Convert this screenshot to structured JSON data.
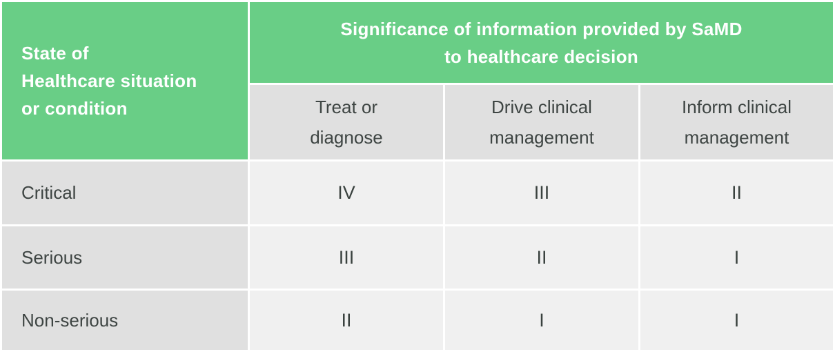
{
  "colors": {
    "header_green": "#69ce86",
    "header_gray": "#e0e0e0",
    "cell_gray": "#f0f0f0",
    "header_text_white": "#ffffff",
    "body_text_dark": "#3e4543",
    "divider_white": "#ffffff"
  },
  "table": {
    "corner_header": "State of\nHealthcare situation\nor condition",
    "main_header": "Significance of information provided by SaMD\nto healthcare decision",
    "column_headers": [
      "Treat or\ndiagnose",
      "Drive clinical\nmanagement",
      "Inform clinical\nmanagement"
    ],
    "rows": [
      {
        "label": "Critical",
        "values": [
          "IV",
          "III",
          "II"
        ]
      },
      {
        "label": "Serious",
        "values": [
          "III",
          "II",
          "I"
        ]
      },
      {
        "label": "Non-serious",
        "values": [
          "II",
          "I",
          "I"
        ]
      }
    ]
  },
  "chart_data": {
    "type": "table",
    "title": "Significance of information provided by SaMD to healthcare decision",
    "row_header_title": "State of Healthcare situation or condition",
    "columns": [
      "Treat or diagnose",
      "Drive clinical management",
      "Inform clinical management"
    ],
    "rows": [
      "Critical",
      "Serious",
      "Non-serious"
    ],
    "cells": [
      [
        "IV",
        "III",
        "II"
      ],
      [
        "III",
        "II",
        "I"
      ],
      [
        "II",
        "I",
        "I"
      ]
    ]
  }
}
